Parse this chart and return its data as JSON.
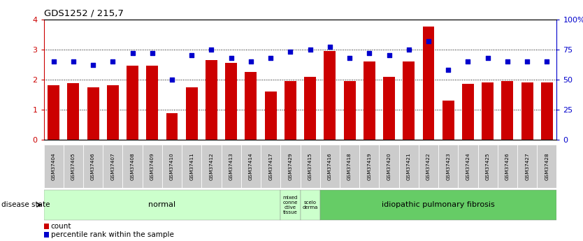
{
  "title": "GDS1252 / 215,7",
  "samples": [
    "GSM37404",
    "GSM37405",
    "GSM37406",
    "GSM37407",
    "GSM37408",
    "GSM37409",
    "GSM37410",
    "GSM37411",
    "GSM37412",
    "GSM37413",
    "GSM37414",
    "GSM37417",
    "GSM37429",
    "GSM37415",
    "GSM37416",
    "GSM37418",
    "GSM37419",
    "GSM37420",
    "GSM37421",
    "GSM37422",
    "GSM37423",
    "GSM37424",
    "GSM37425",
    "GSM37426",
    "GSM37427",
    "GSM37428"
  ],
  "bar_values": [
    1.82,
    1.88,
    1.75,
    1.82,
    2.45,
    2.45,
    0.88,
    1.75,
    2.65,
    2.55,
    2.25,
    1.6,
    1.95,
    2.1,
    2.95,
    1.95,
    2.6,
    2.1,
    2.6,
    3.75,
    1.3,
    1.85,
    1.9,
    1.95,
    1.9,
    1.9
  ],
  "dot_values_pct": [
    65,
    65,
    62,
    65,
    72,
    72,
    50,
    70,
    75,
    68,
    65,
    68,
    73,
    75,
    77,
    68,
    72,
    70,
    75,
    82,
    58,
    65,
    68,
    65,
    65,
    65
  ],
  "bar_color": "#cc0000",
  "dot_color": "#0000cc",
  "ylim": [
    0,
    4
  ],
  "yticks": [
    0,
    1,
    2,
    3,
    4
  ],
  "right_ytick_labels": [
    "0",
    "25",
    "50",
    "75",
    "100%"
  ],
  "groups": [
    {
      "label": "normal",
      "start": 0,
      "end": 12,
      "color": "#ccffcc"
    },
    {
      "label": "mixed\nconne\nctive\ntissue",
      "start": 12,
      "end": 13,
      "color": "#ccffcc"
    },
    {
      "label": "scelo\nderma",
      "start": 13,
      "end": 14,
      "color": "#ccffcc"
    },
    {
      "label": "idiopathic pulmonary fibrosis",
      "start": 14,
      "end": 26,
      "color": "#66cc66"
    }
  ],
  "group_fontsizes": [
    8,
    5,
    5,
    8
  ],
  "bg_color": "#ffffff",
  "plot_bg": "#ffffff",
  "grid_color": "#000000",
  "tick_bg": "#cccccc"
}
